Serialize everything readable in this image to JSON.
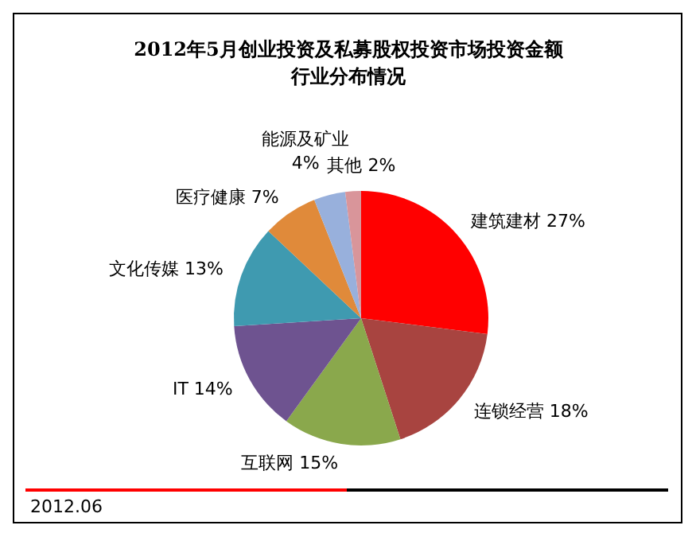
{
  "chart_data": {
    "type": "pie",
    "title": "2012年5月创业投资及私募股权投资市场投资金额行业分布情况",
    "categories": [
      "建筑建材",
      "连锁经营",
      "互联网",
      "IT",
      "文化传媒",
      "医疗健康",
      "能源及矿业",
      "其他"
    ],
    "values": [
      27,
      18,
      15,
      14,
      13,
      7,
      4,
      2
    ],
    "value_labels": [
      "27%",
      "18%",
      "15%",
      "14%",
      "13%",
      "7%",
      "4%",
      "2%"
    ],
    "colors": [
      "#ff0000",
      "#a84440",
      "#8aa84c",
      "#6e5390",
      "#3f9ab0",
      "#e08a3a",
      "#98b0dc",
      "#d9959a"
    ],
    "legend": false,
    "annotations": [
      "2012.06"
    ]
  }
}
